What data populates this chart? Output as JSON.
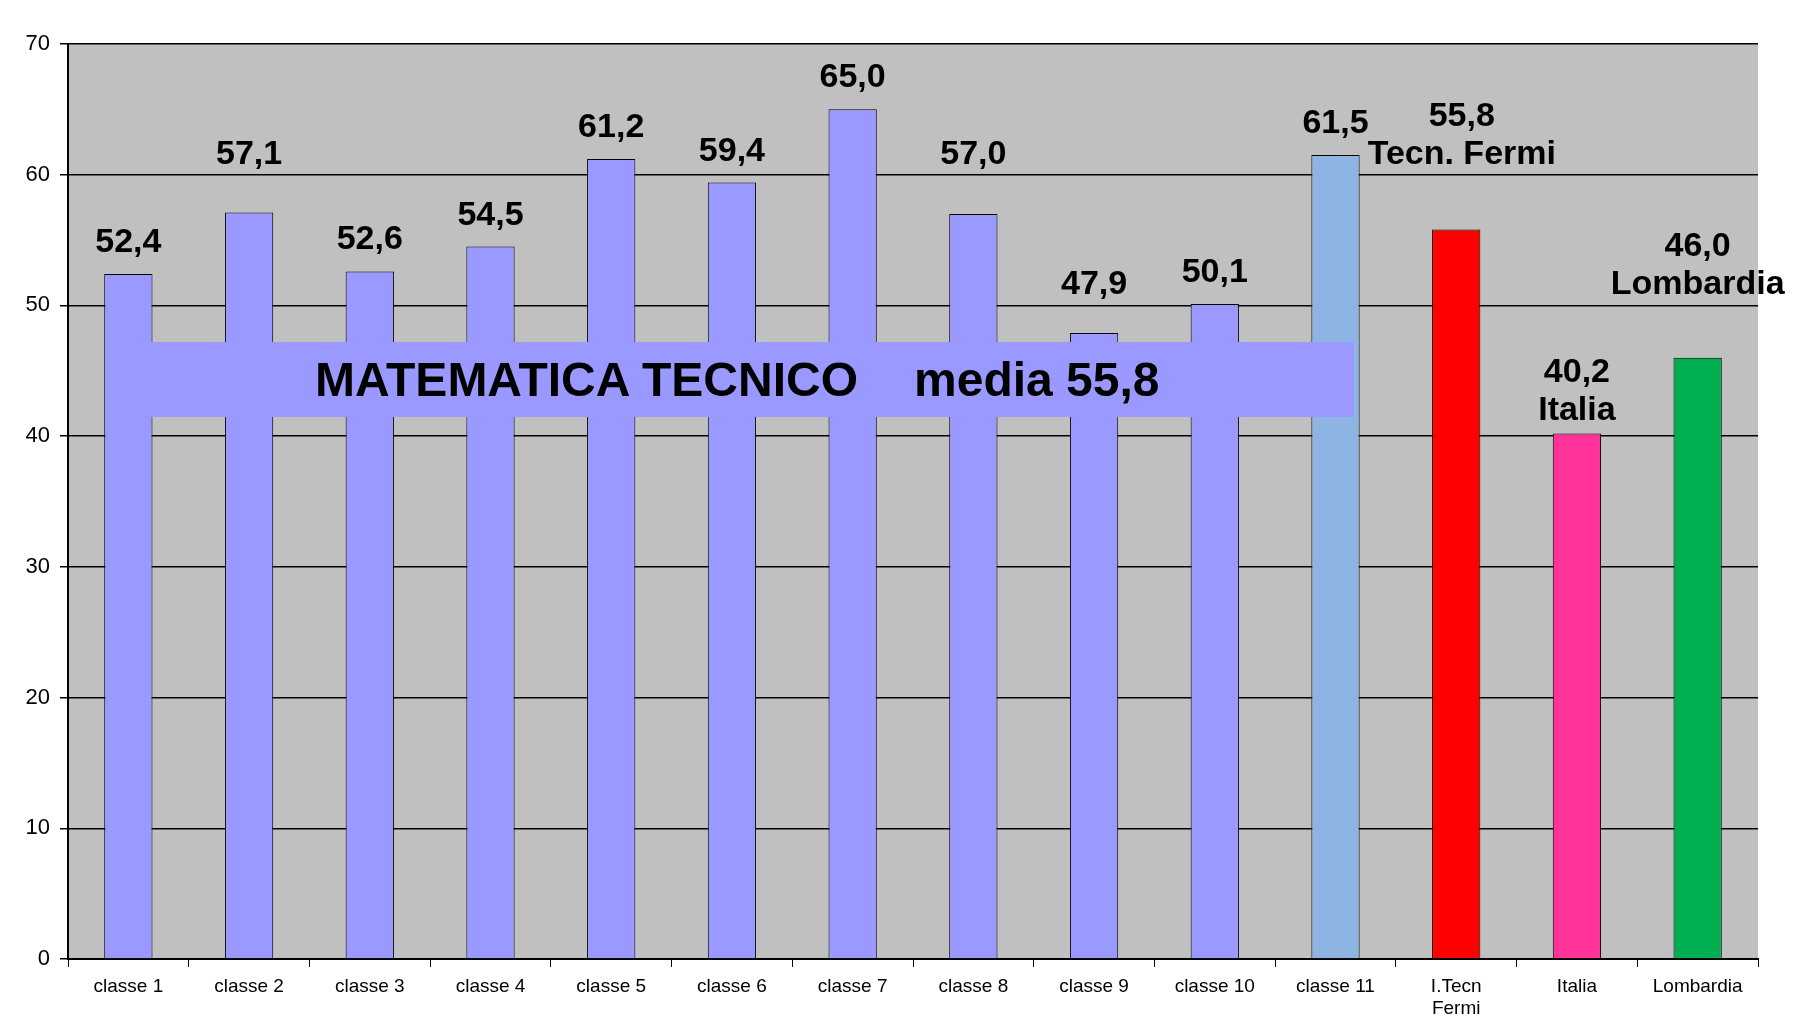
{
  "chart_data": {
    "type": "bar",
    "title": "MATEMATICA TECNICO",
    "subtitle": "media 55,8",
    "categories": [
      "classe 1",
      "classe 2",
      "classe 3",
      "classe 4",
      "classe 5",
      "classe 6",
      "classe 7",
      "classe 8",
      "classe 9",
      "classe 10",
      "classe 11",
      "I.Tecn\nFermi",
      "Italia",
      "Lombardia"
    ],
    "values": [
      52.4,
      57.1,
      52.6,
      54.5,
      61.2,
      59.4,
      65.0,
      57.0,
      47.9,
      50.1,
      61.5,
      55.8,
      40.2,
      46.0
    ],
    "colors": [
      "#9999ff",
      "#9999ff",
      "#9999ff",
      "#9999ff",
      "#9999ff",
      "#9999ff",
      "#9999ff",
      "#9999ff",
      "#9999ff",
      "#9999ff",
      "#8eb4e3",
      "#ff0000",
      "#ff3399",
      "#00b050"
    ],
    "value_labels": [
      "52,4",
      "57,1",
      "52,6",
      "54,5",
      "61,2",
      "59,4",
      "65,0",
      "57,0",
      "47,9",
      "50,1",
      "61,5",
      "55,8",
      "40,2",
      "46,0"
    ],
    "annotations": [
      {
        "text": "Tecn. Fermi",
        "x": "I.Tecn\nFermi",
        "y": 55.8
      },
      {
        "text": "Italia",
        "x": "Italia",
        "y": 40.2
      },
      {
        "text": "Lombardia",
        "x": "Lombardia",
        "y": 46.0
      }
    ],
    "ylim": [
      0,
      70
    ],
    "yticks": [
      0,
      10,
      20,
      30,
      40,
      50,
      60,
      70
    ],
    "grid": "y"
  }
}
